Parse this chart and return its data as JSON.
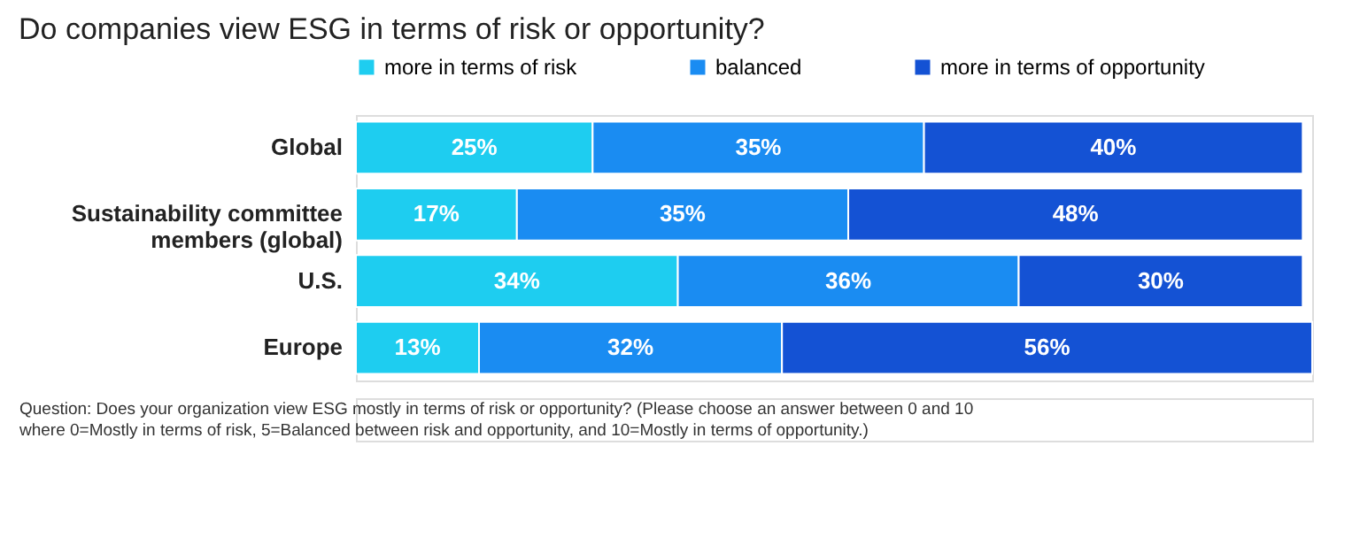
{
  "chart_data": {
    "type": "bar",
    "orientation": "horizontal",
    "stacked": true,
    "title": "Do companies view ESG in terms of risk or opportunity?",
    "categories": [
      "Global",
      "Sustainability committee members (global)",
      "U.S.",
      "Europe"
    ],
    "series": [
      {
        "name": "more in terms of risk",
        "color": "#1ecdf0",
        "values": [
          25,
          17,
          34,
          13
        ],
        "value_labels": [
          "25%",
          "17%",
          "34%",
          "13%"
        ]
      },
      {
        "name": "balanced",
        "color": "#1a8cf2",
        "values": [
          35,
          35,
          36,
          32
        ],
        "value_labels": [
          "35%",
          "35%",
          "36%",
          "32%"
        ]
      },
      {
        "name": "more in terms of opportunity",
        "color": "#1452d4",
        "values": [
          40,
          48,
          30,
          56
        ],
        "value_labels": [
          "40%",
          "48%",
          "30%",
          "56%"
        ]
      }
    ],
    "legend": "top",
    "annotations": [
      "Question: Does your organization view ESG mostly in terms of risk or opportunity? (Please choose an answer between 0 and 10 where 0=Mostly in terms of risk, 5=Balanced between risk and opportunity, and 10=Mostly in terms of opportunity.)"
    ]
  }
}
